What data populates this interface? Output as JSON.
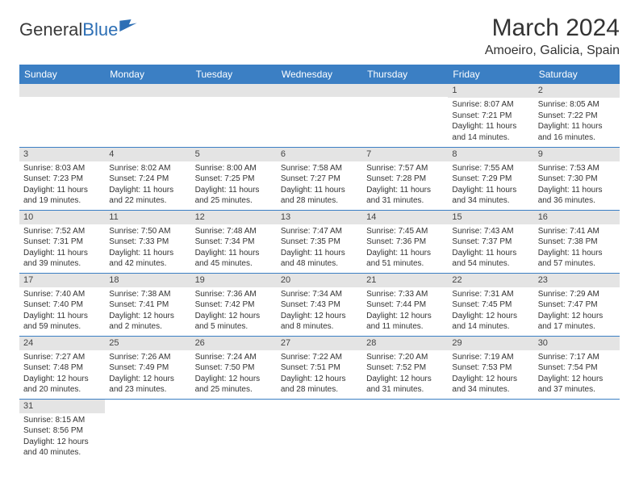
{
  "logo": {
    "text1": "General",
    "text2": "Blue"
  },
  "title": "March 2024",
  "location": "Amoeiro, Galicia, Spain",
  "colors": {
    "header_bg": "#3b7fc4",
    "header_fg": "#ffffff",
    "daynum_bg": "#e4e4e4",
    "cell_border": "#3b7fc4",
    "logo_blue": "#2d6fb5"
  },
  "weekdays": [
    "Sunday",
    "Monday",
    "Tuesday",
    "Wednesday",
    "Thursday",
    "Friday",
    "Saturday"
  ],
  "weeks": [
    [
      null,
      null,
      null,
      null,
      null,
      {
        "n": "1",
        "sunrise": "8:07 AM",
        "sunset": "7:21 PM",
        "dlh": "11",
        "dlm": "14"
      },
      {
        "n": "2",
        "sunrise": "8:05 AM",
        "sunset": "7:22 PM",
        "dlh": "11",
        "dlm": "16"
      }
    ],
    [
      {
        "n": "3",
        "sunrise": "8:03 AM",
        "sunset": "7:23 PM",
        "dlh": "11",
        "dlm": "19"
      },
      {
        "n": "4",
        "sunrise": "8:02 AM",
        "sunset": "7:24 PM",
        "dlh": "11",
        "dlm": "22"
      },
      {
        "n": "5",
        "sunrise": "8:00 AM",
        "sunset": "7:25 PM",
        "dlh": "11",
        "dlm": "25"
      },
      {
        "n": "6",
        "sunrise": "7:58 AM",
        "sunset": "7:27 PM",
        "dlh": "11",
        "dlm": "28"
      },
      {
        "n": "7",
        "sunrise": "7:57 AM",
        "sunset": "7:28 PM",
        "dlh": "11",
        "dlm": "31"
      },
      {
        "n": "8",
        "sunrise": "7:55 AM",
        "sunset": "7:29 PM",
        "dlh": "11",
        "dlm": "34"
      },
      {
        "n": "9",
        "sunrise": "7:53 AM",
        "sunset": "7:30 PM",
        "dlh": "11",
        "dlm": "36"
      }
    ],
    [
      {
        "n": "10",
        "sunrise": "7:52 AM",
        "sunset": "7:31 PM",
        "dlh": "11",
        "dlm": "39"
      },
      {
        "n": "11",
        "sunrise": "7:50 AM",
        "sunset": "7:33 PM",
        "dlh": "11",
        "dlm": "42"
      },
      {
        "n": "12",
        "sunrise": "7:48 AM",
        "sunset": "7:34 PM",
        "dlh": "11",
        "dlm": "45"
      },
      {
        "n": "13",
        "sunrise": "7:47 AM",
        "sunset": "7:35 PM",
        "dlh": "11",
        "dlm": "48"
      },
      {
        "n": "14",
        "sunrise": "7:45 AM",
        "sunset": "7:36 PM",
        "dlh": "11",
        "dlm": "51"
      },
      {
        "n": "15",
        "sunrise": "7:43 AM",
        "sunset": "7:37 PM",
        "dlh": "11",
        "dlm": "54"
      },
      {
        "n": "16",
        "sunrise": "7:41 AM",
        "sunset": "7:38 PM",
        "dlh": "11",
        "dlm": "57"
      }
    ],
    [
      {
        "n": "17",
        "sunrise": "7:40 AM",
        "sunset": "7:40 PM",
        "dlh": "11",
        "dlm": "59"
      },
      {
        "n": "18",
        "sunrise": "7:38 AM",
        "sunset": "7:41 PM",
        "dlh": "12",
        "dlm": "2"
      },
      {
        "n": "19",
        "sunrise": "7:36 AM",
        "sunset": "7:42 PM",
        "dlh": "12",
        "dlm": "5"
      },
      {
        "n": "20",
        "sunrise": "7:34 AM",
        "sunset": "7:43 PM",
        "dlh": "12",
        "dlm": "8"
      },
      {
        "n": "21",
        "sunrise": "7:33 AM",
        "sunset": "7:44 PM",
        "dlh": "12",
        "dlm": "11"
      },
      {
        "n": "22",
        "sunrise": "7:31 AM",
        "sunset": "7:45 PM",
        "dlh": "12",
        "dlm": "14"
      },
      {
        "n": "23",
        "sunrise": "7:29 AM",
        "sunset": "7:47 PM",
        "dlh": "12",
        "dlm": "17"
      }
    ],
    [
      {
        "n": "24",
        "sunrise": "7:27 AM",
        "sunset": "7:48 PM",
        "dlh": "12",
        "dlm": "20"
      },
      {
        "n": "25",
        "sunrise": "7:26 AM",
        "sunset": "7:49 PM",
        "dlh": "12",
        "dlm": "23"
      },
      {
        "n": "26",
        "sunrise": "7:24 AM",
        "sunset": "7:50 PM",
        "dlh": "12",
        "dlm": "25"
      },
      {
        "n": "27",
        "sunrise": "7:22 AM",
        "sunset": "7:51 PM",
        "dlh": "12",
        "dlm": "28"
      },
      {
        "n": "28",
        "sunrise": "7:20 AM",
        "sunset": "7:52 PM",
        "dlh": "12",
        "dlm": "31"
      },
      {
        "n": "29",
        "sunrise": "7:19 AM",
        "sunset": "7:53 PM",
        "dlh": "12",
        "dlm": "34"
      },
      {
        "n": "30",
        "sunrise": "7:17 AM",
        "sunset": "7:54 PM",
        "dlh": "12",
        "dlm": "37"
      }
    ],
    [
      {
        "n": "31",
        "sunrise": "8:15 AM",
        "sunset": "8:56 PM",
        "dlh": "12",
        "dlm": "40"
      },
      null,
      null,
      null,
      null,
      null,
      null
    ]
  ],
  "labels": {
    "sunrise": "Sunrise:",
    "sunset": "Sunset:",
    "daylight_prefix": "Daylight:",
    "hours_word": "hours",
    "and_word": "and",
    "minutes_word": "minutes."
  }
}
